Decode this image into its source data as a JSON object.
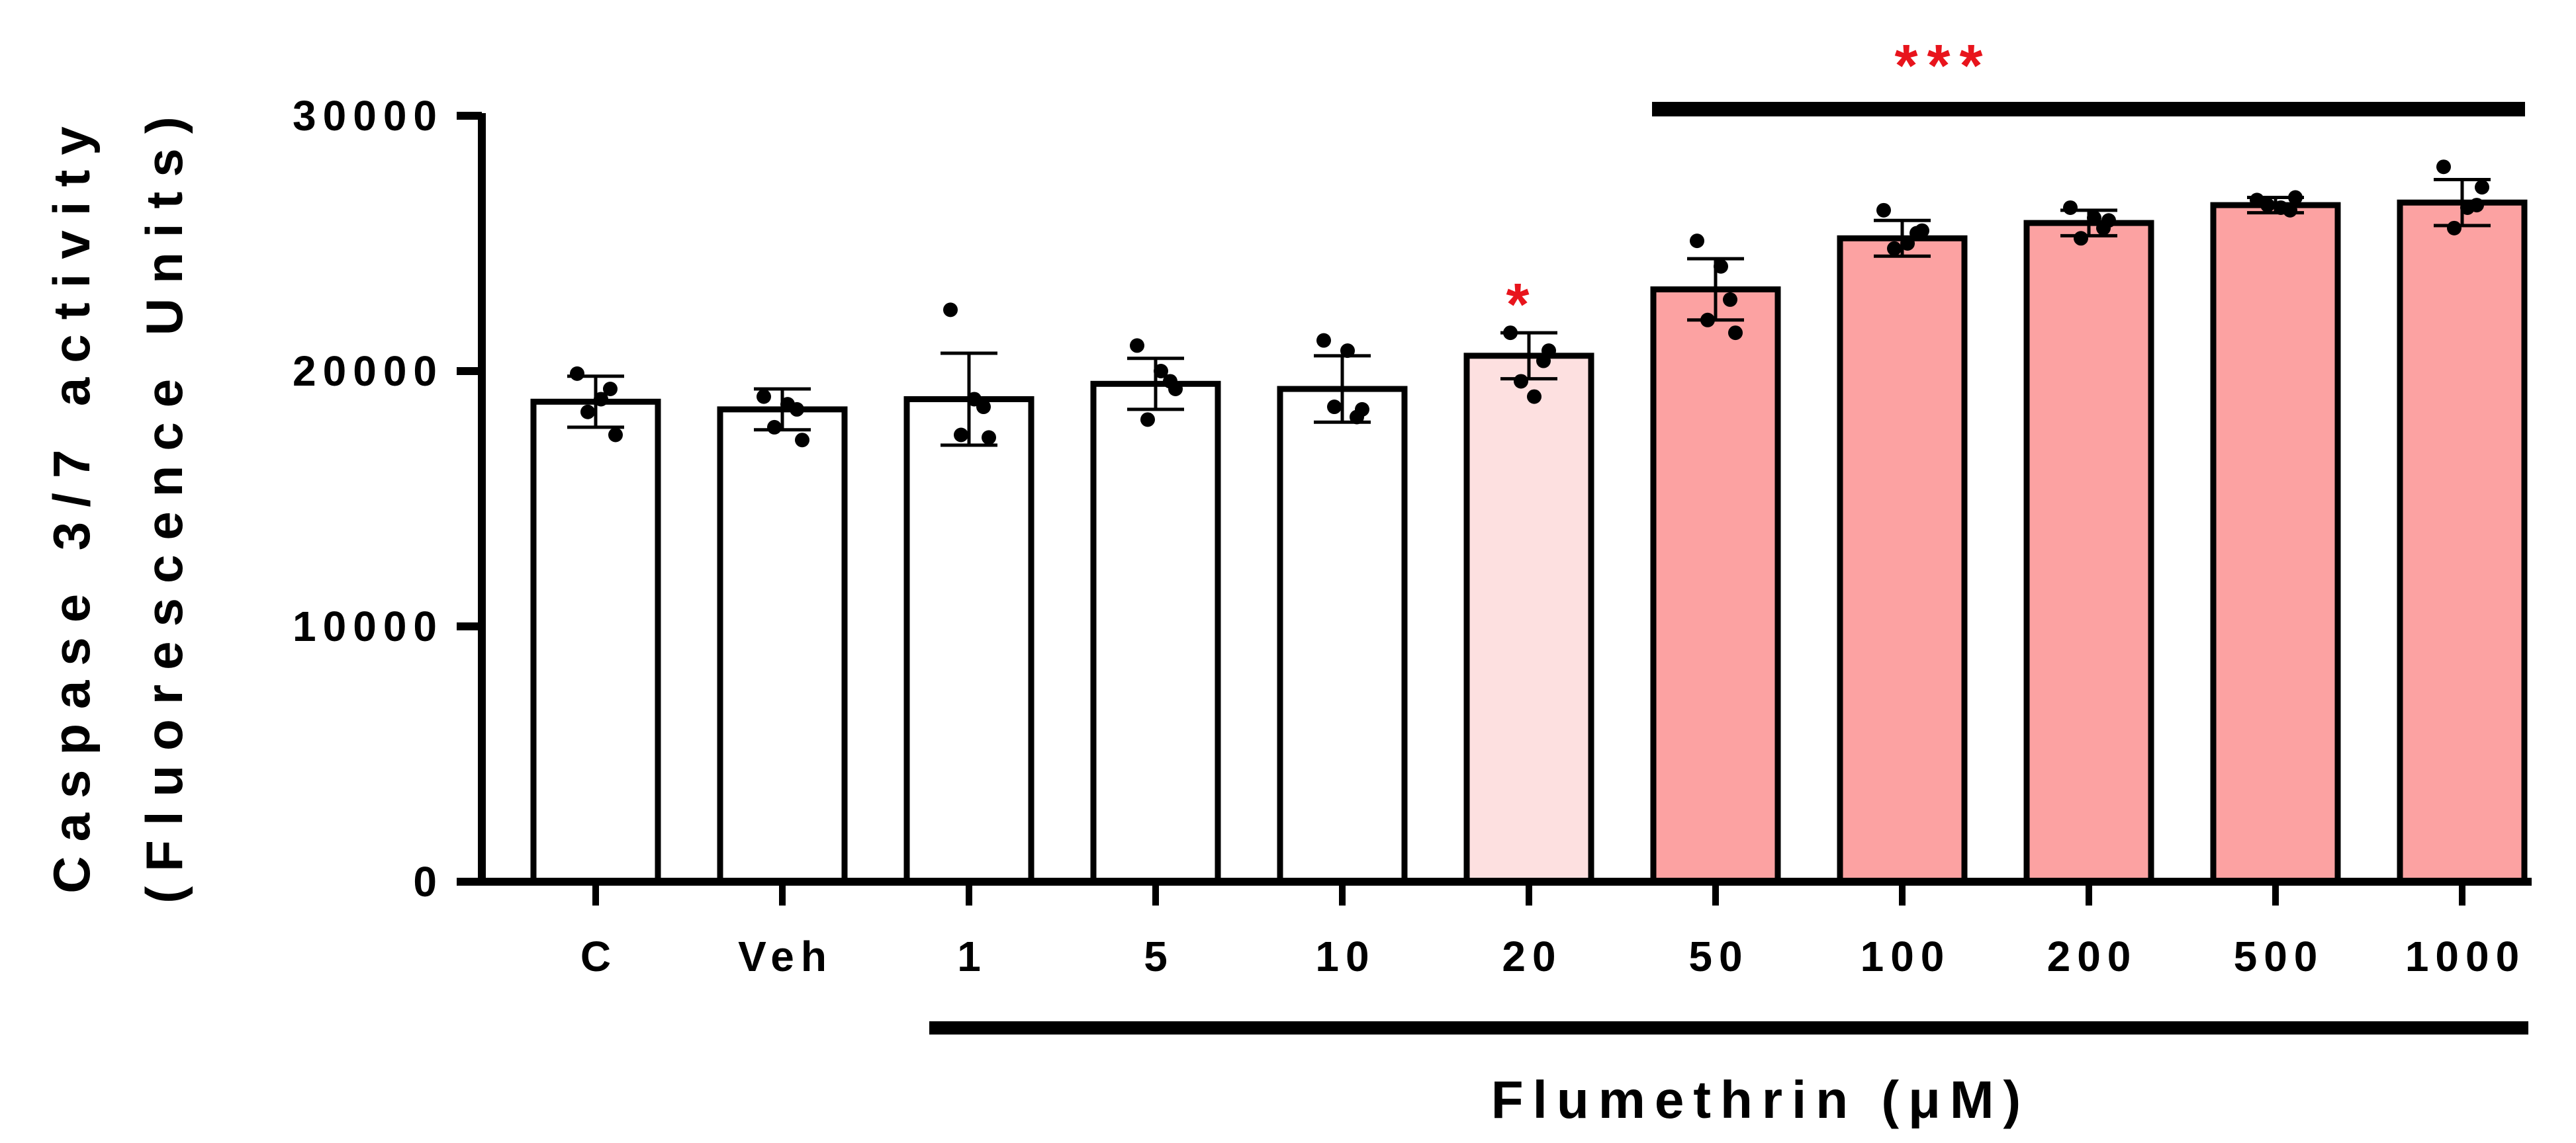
{
  "chart_data": {
    "type": "bar",
    "categories": [
      "C",
      "Veh",
      "1",
      "5",
      "10",
      "20",
      "50",
      "100",
      "200",
      "500",
      "1000"
    ],
    "values": [
      18800,
      18500,
      18900,
      19500,
      19300,
      20600,
      23200,
      25200,
      25800,
      26500,
      26600
    ],
    "error": [
      1000,
      800,
      1800,
      1000,
      1300,
      900,
      1200,
      700,
      500,
      300,
      900
    ],
    "points": [
      [
        19900,
        19300,
        18400,
        17500,
        18900
      ],
      [
        19000,
        18500,
        17800,
        17300,
        18700
      ],
      [
        22400,
        18600,
        17500,
        17400,
        18900
      ],
      [
        21000,
        19600,
        18100,
        19300,
        20000
      ],
      [
        21200,
        18200,
        18600,
        18500,
        20800
      ],
      [
        21500,
        20400,
        19600,
        20800,
        19000
      ],
      [
        25100,
        22800,
        22000,
        21500,
        24100
      ],
      [
        26300,
        25400,
        24800,
        25500,
        25000
      ],
      [
        26400,
        25600,
        25200,
        25900,
        26000
      ],
      [
        26700,
        26300,
        26500,
        26800,
        26400
      ],
      [
        28000,
        26500,
        25600,
        27200,
        26400
      ]
    ],
    "bar_colors": [
      "#ffffff",
      "#ffffff",
      "#ffffff",
      "#ffffff",
      "#ffffff",
      "#fde0e0",
      "#fca2a2",
      "#fca2a2",
      "#fca2a2",
      "#fca2a2",
      "#fca2a2"
    ],
    "ylim": [
      0,
      30000
    ],
    "yticks": [
      "0",
      "10000",
      "20000",
      "30000"
    ],
    "ylabel_line1": "Caspase 3/7 activity",
    "ylabel_line2": "(Fluorescence Units)",
    "xlabel": "Flumethrin (μM)",
    "annotations": {
      "single_star": "*",
      "triple_star": "***",
      "star_color": "#e8141c"
    },
    "grid": false
  }
}
